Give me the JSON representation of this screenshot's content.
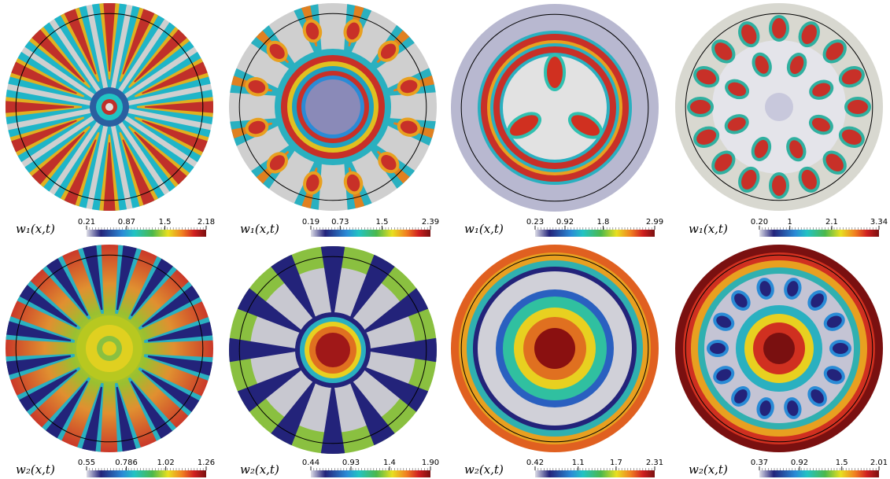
{
  "panels": [
    {
      "label": "w₁(x,t)",
      "colorbar": {
        "ticks": [
          0.21,
          0.87,
          1.5,
          2.18
        ]
      }
    },
    {
      "label": "w₁(x,t)",
      "colorbar": {
        "ticks": [
          0.19,
          0.73,
          1.5,
          2.39
        ]
      }
    },
    {
      "label": "w₁(x,t)",
      "colorbar": {
        "ticks": [
          0.23,
          0.92,
          1.8,
          2.99
        ]
      }
    },
    {
      "label": "w₁(x,t)",
      "colorbar": {
        "ticks": [
          {
            "value": 0.2,
            "label": "0.20"
          },
          1,
          2.1,
          3.34
        ]
      }
    },
    {
      "label": "w₂(x,t)",
      "colorbar": {
        "ticks": [
          0.55,
          0.786,
          1.02,
          1.26
        ]
      }
    },
    {
      "label": "w₂(x,t)",
      "colorbar": {
        "ticks": [
          0.44,
          0.93,
          1.4,
          {
            "value": 1.9,
            "label": "1.90"
          }
        ]
      }
    },
    {
      "label": "w₂(x,t)",
      "colorbar": {
        "ticks": [
          0.42,
          1.1,
          1.7,
          2.31
        ]
      }
    },
    {
      "label": "w₂(x,t)",
      "colorbar": {
        "ticks": [
          0.37,
          0.92,
          1.5,
          2.01
        ]
      }
    }
  ]
}
